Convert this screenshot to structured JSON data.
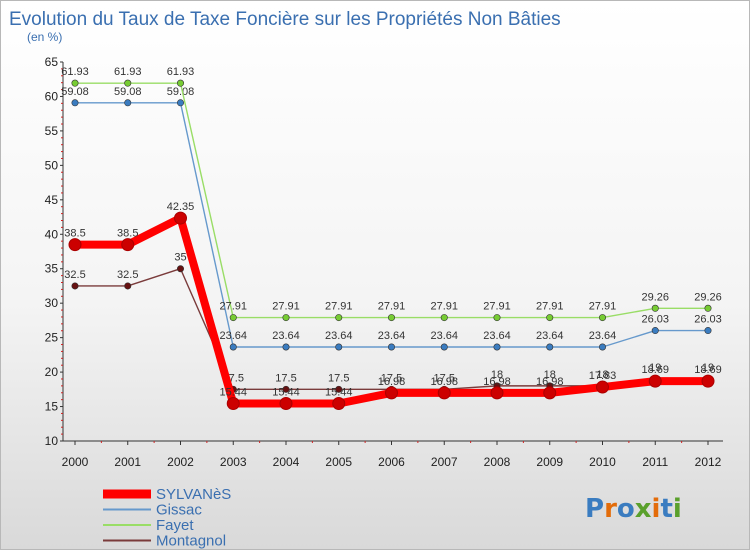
{
  "chart_data": {
    "type": "line",
    "title": "Evolution du Taux de Taxe Foncière sur les Propriétés Non Bâties",
    "subtitle": "(en %)",
    "xlabel": "",
    "ylabel": "",
    "ylim": [
      10,
      65
    ],
    "yticks": [
      10,
      15,
      20,
      25,
      30,
      35,
      40,
      45,
      50,
      55,
      60,
      65
    ],
    "grid": false,
    "categories": [
      "2000",
      "2001",
      "2002",
      "2003",
      "2004",
      "2005",
      "2006",
      "2007",
      "2008",
      "2009",
      "2010",
      "2011",
      "2012"
    ],
    "series": [
      {
        "name": "SYLVANèS",
        "color": "#ff0000",
        "marker": "#cc0000",
        "values": [
          38.5,
          38.5,
          42.35,
          15.44,
          15.44,
          15.44,
          16.98,
          16.98,
          16.98,
          16.98,
          17.83,
          18.69,
          18.69
        ],
        "labels": [
          "38.5",
          "38.5",
          "42.35",
          "15.44",
          "15.44",
          "15.44",
          "16.98",
          "16.98",
          "16.98",
          "16.98",
          "17.83",
          "18.69",
          "18.69"
        ]
      },
      {
        "name": "Gissac",
        "color": "#6699cc",
        "marker": "#3a7cc0",
        "values": [
          59.08,
          59.08,
          59.08,
          23.64,
          23.64,
          23.64,
          23.64,
          23.64,
          23.64,
          23.64,
          23.64,
          26.03,
          26.03
        ],
        "labels": [
          "59.08",
          "59.08",
          "59.08",
          "23.64",
          "23.64",
          "23.64",
          "23.64",
          "23.64",
          "23.64",
          "23.64",
          "23.64",
          "26.03",
          "26.03"
        ]
      },
      {
        "name": "Fayet",
        "color": "#99dd66",
        "marker": "#77cc33",
        "values": [
          61.93,
          61.93,
          61.93,
          27.91,
          27.91,
          27.91,
          27.91,
          27.91,
          27.91,
          27.91,
          27.91,
          29.26,
          29.26
        ],
        "labels": [
          "61.93",
          "61.93",
          "61.93",
          "27.91",
          "27.91",
          "27.91",
          "27.91",
          "27.91",
          "27.91",
          "27.91",
          "27.91",
          "29.26",
          "29.26"
        ]
      },
      {
        "name": "Montagnol",
        "color": "#7a3b3b",
        "marker": "#661111",
        "values": [
          32.5,
          32.5,
          35,
          17.5,
          17.5,
          17.5,
          17.5,
          17.5,
          18,
          18,
          18,
          19,
          19
        ],
        "labels": [
          "32.5",
          "32.5",
          "35",
          "17.5",
          "17.5",
          "17.5",
          "17.5",
          "17.5",
          "18",
          "18",
          "18",
          "19",
          "19"
        ]
      }
    ]
  },
  "logo": {
    "letters": [
      "P",
      "r",
      "o",
      "x",
      "i",
      "t",
      "i"
    ],
    "colors": [
      "#3a7cc0",
      "#e36c0a",
      "#3a7cc0",
      "#5aa02c",
      "#e36c0a",
      "#3a7cc0",
      "#5aa02c"
    ]
  }
}
